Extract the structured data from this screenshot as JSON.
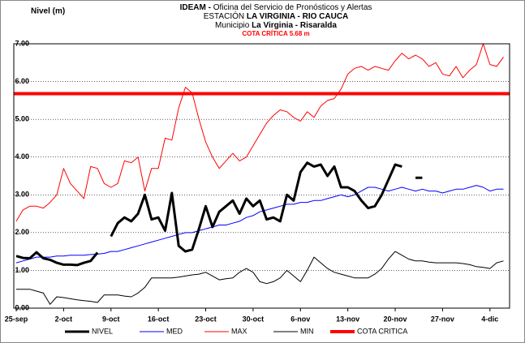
{
  "chart_data": {
    "type": "line",
    "title_lines": [
      [
        "IDEAM -",
        "Oficina del Servicio de Pronósticos  y Alertas"
      ],
      [
        "ESTACIÓN",
        "LA VIRGINIA - RIO CAUCA"
      ],
      [
        "Municipio",
        "La Virginia - Risaralda"
      ]
    ],
    "subtitle": "COTA CRÍTICA 5.68 m",
    "y_label": "Nivel (m)",
    "categories": [
      "25-sep",
      null,
      null,
      null,
      null,
      null,
      null,
      "2-oct",
      null,
      null,
      null,
      null,
      null,
      null,
      "9-oct",
      null,
      null,
      null,
      null,
      null,
      null,
      "16-oct",
      null,
      null,
      null,
      null,
      null,
      null,
      "23-oct",
      null,
      null,
      null,
      null,
      null,
      null,
      "30-oct",
      null,
      null,
      null,
      null,
      null,
      null,
      "6-nov",
      null,
      null,
      null,
      null,
      null,
      null,
      "13-nov",
      null,
      null,
      null,
      null,
      null,
      null,
      "20-nov",
      null,
      null,
      null,
      null,
      null,
      null,
      "27-nov",
      null,
      null,
      null,
      null,
      null,
      null,
      "4-dic",
      null,
      null
    ],
    "ylim": [
      0,
      7
    ],
    "yticks": [
      {
        "value": 0,
        "label": "0.00"
      },
      {
        "value": 1,
        "label": "1.00"
      },
      {
        "value": 2,
        "label": "2.00"
      },
      {
        "value": 3,
        "label": "3.00"
      },
      {
        "value": 4,
        "label": "4.00"
      },
      {
        "value": 5,
        "label": "5.00"
      },
      {
        "value": 6,
        "label": "6.00"
      },
      {
        "value": 7,
        "label": "7.00"
      }
    ],
    "grid": true,
    "series": [
      {
        "name": "NIVEL",
        "color": "#000000",
        "width": 3,
        "values": [
          1.38,
          1.33,
          1.32,
          1.48,
          1.32,
          1.28,
          1.2,
          1.15,
          1.15,
          1.14,
          1.2,
          1.25,
          1.47,
          null,
          1.9,
          2.25,
          2.4,
          2.3,
          2.5,
          3.0,
          2.35,
          2.4,
          2.05,
          3.05,
          1.65,
          1.5,
          1.55,
          2.1,
          2.7,
          2.15,
          2.55,
          2.7,
          2.85,
          2.5,
          2.9,
          2.7,
          2.85,
          2.35,
          2.4,
          2.3,
          3.0,
          2.85,
          3.6,
          3.85,
          3.75,
          3.8,
          3.5,
          3.75,
          3.2,
          3.2,
          3.1,
          2.85,
          2.65,
          2.7,
          3.0,
          3.4,
          3.8,
          3.75,
          null,
          3.45,
          3.45,
          null,
          null,
          null,
          null,
          null,
          null,
          null,
          null,
          null,
          null,
          null,
          null
        ]
      },
      {
        "name": "MED",
        "color": "#0000ff",
        "width": 1,
        "values": [
          1.2,
          1.25,
          1.3,
          1.35,
          1.35,
          1.35,
          1.38,
          1.38,
          1.4,
          1.4,
          1.4,
          1.42,
          1.43,
          1.45,
          1.5,
          1.5,
          1.55,
          1.6,
          1.65,
          1.7,
          1.75,
          1.8,
          1.85,
          1.9,
          1.95,
          2.0,
          2.0,
          2.05,
          2.1,
          2.15,
          2.2,
          2.2,
          2.25,
          2.3,
          2.4,
          2.45,
          2.55,
          2.6,
          2.65,
          2.7,
          2.75,
          2.75,
          2.8,
          2.8,
          2.85,
          2.85,
          2.9,
          2.95,
          3.0,
          2.95,
          3.0,
          3.1,
          3.2,
          3.2,
          3.15,
          3.1,
          3.15,
          3.2,
          3.15,
          3.1,
          3.15,
          3.1,
          3.1,
          3.05,
          3.1,
          3.15,
          3.15,
          3.2,
          3.25,
          3.2,
          3.1,
          3.15,
          3.15
        ]
      },
      {
        "name": "MAX",
        "color": "#ff0000",
        "width": 1,
        "values": [
          2.3,
          2.6,
          2.7,
          2.7,
          2.65,
          2.8,
          3.0,
          3.7,
          3.3,
          3.1,
          2.9,
          3.75,
          3.7,
          3.3,
          3.2,
          3.3,
          3.9,
          3.85,
          4.0,
          3.1,
          3.7,
          3.7,
          4.5,
          4.45,
          5.3,
          5.85,
          5.7,
          5.0,
          4.4,
          4.0,
          3.7,
          3.9,
          4.1,
          3.9,
          4.0,
          4.3,
          4.6,
          4.9,
          5.1,
          5.25,
          5.2,
          5.05,
          4.95,
          5.2,
          5.05,
          5.35,
          5.5,
          5.55,
          5.8,
          6.2,
          6.35,
          6.4,
          6.3,
          6.4,
          6.35,
          6.3,
          6.55,
          6.75,
          6.6,
          6.7,
          6.6,
          6.4,
          6.5,
          6.2,
          6.15,
          6.4,
          6.1,
          6.3,
          6.45,
          7.0,
          6.45,
          6.4,
          6.65
        ]
      },
      {
        "name": "MIN",
        "color": "#000000",
        "width": 1,
        "values": [
          0.5,
          0.5,
          0.5,
          0.45,
          0.4,
          0.1,
          0.3,
          0.28,
          0.25,
          0.22,
          0.2,
          0.18,
          0.15,
          0.35,
          0.35,
          0.35,
          0.32,
          0.3,
          0.4,
          0.55,
          0.8,
          0.8,
          0.8,
          0.8,
          0.82,
          0.85,
          0.88,
          0.9,
          0.95,
          0.85,
          0.75,
          0.78,
          0.8,
          0.95,
          1.05,
          0.95,
          0.7,
          0.65,
          0.7,
          0.8,
          1.0,
          0.85,
          0.7,
          1.0,
          1.35,
          1.2,
          1.05,
          0.95,
          0.9,
          0.85,
          0.8,
          0.8,
          0.8,
          0.9,
          1.05,
          1.3,
          1.5,
          1.4,
          1.3,
          1.25,
          1.25,
          1.22,
          1.2,
          1.2,
          1.2,
          1.2,
          1.18,
          1.15,
          1.1,
          1.08,
          1.05,
          1.2,
          1.25
        ]
      }
    ],
    "reference_line": {
      "name": "COTA CRITICA",
      "color": "#ff0000",
      "width": 4,
      "value": 5.68
    }
  }
}
